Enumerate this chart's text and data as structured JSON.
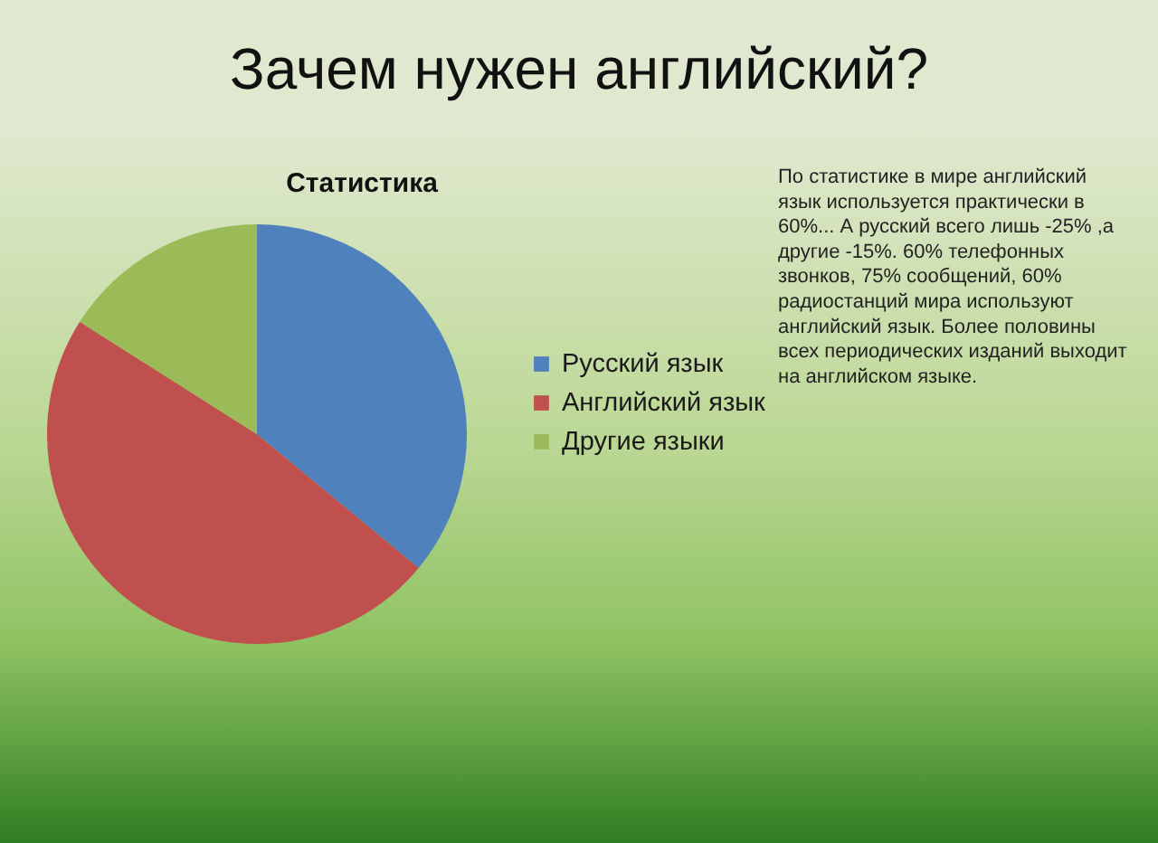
{
  "chart_data": {
    "type": "pie",
    "title": "Зачем нужен английский?",
    "subtitle": "Статистика",
    "categories": [
      "Русский язык",
      "Английский язык",
      "Другие языки"
    ],
    "values": [
      36,
      48,
      16
    ],
    "colors": [
      "#4f81bd",
      "#c0504d",
      "#9bbb59"
    ],
    "legend": "right",
    "annotations": [
      "По статистике в мире английский\nязык используется практически в\n60%... А русский всего лишь -25% ,а\nдругие -15%. 60% телефонных\nзвонков, 75% сообщений, 60%\nрадиостанций мира используют\nанглийский язык. Более половины\nвсех периодических изданий выходит\nна английском языке."
    ]
  }
}
